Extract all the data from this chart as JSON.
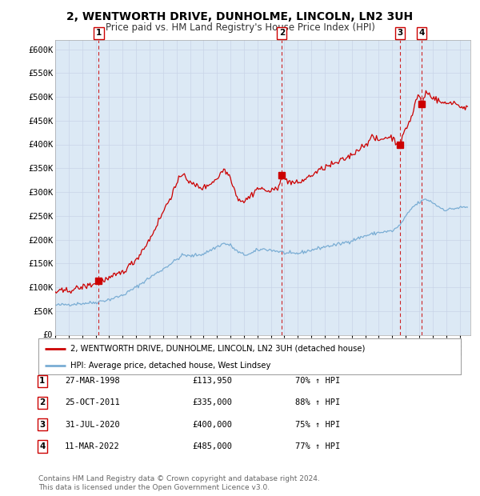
{
  "title": "2, WENTWORTH DRIVE, DUNHOLME, LINCOLN, LN2 3UH",
  "subtitle": "Price paid vs. HM Land Registry's House Price Index (HPI)",
  "title_fontsize": 10,
  "subtitle_fontsize": 8.5,
  "background_color": "#ffffff",
  "plot_bg_color": "#dce9f5",
  "ylim": [
    0,
    620000
  ],
  "yticks": [
    0,
    50000,
    100000,
    150000,
    200000,
    250000,
    300000,
    350000,
    400000,
    450000,
    500000,
    550000,
    600000
  ],
  "ytick_labels": [
    "£0",
    "£50K",
    "£100K",
    "£150K",
    "£200K",
    "£250K",
    "£300K",
    "£350K",
    "£400K",
    "£450K",
    "£500K",
    "£550K",
    "£600K"
  ],
  "xlim_start": 1995.0,
  "xlim_end": 2025.8,
  "xtick_years": [
    1995,
    1996,
    1997,
    1998,
    1999,
    2000,
    2001,
    2002,
    2003,
    2004,
    2005,
    2006,
    2007,
    2008,
    2009,
    2010,
    2011,
    2012,
    2013,
    2014,
    2015,
    2016,
    2017,
    2018,
    2019,
    2020,
    2021,
    2022,
    2023,
    2024,
    2025
  ],
  "sale_color": "#cc0000",
  "hpi_color": "#7aadd4",
  "grid_color": "#c8d4e8",
  "vline_color": "#cc0000",
  "legend_sale_label": "2, WENTWORTH DRIVE, DUNHOLME, LINCOLN, LN2 3UH (detached house)",
  "legend_hpi_label": "HPI: Average price, detached house, West Lindsey",
  "sales": [
    {
      "num": 1,
      "date_decimal": 1998.23,
      "price": 113950,
      "label": "1",
      "date_str": "27-MAR-1998",
      "price_str": "£113,950",
      "pct": "70%",
      "dir": "↑"
    },
    {
      "num": 2,
      "date_decimal": 2011.81,
      "price": 335000,
      "label": "2",
      "date_str": "25-OCT-2011",
      "price_str": "£335,000",
      "pct": "88%",
      "dir": "↑"
    },
    {
      "num": 3,
      "date_decimal": 2020.58,
      "price": 400000,
      "label": "3",
      "date_str": "31-JUL-2020",
      "price_str": "£400,000",
      "pct": "75%",
      "dir": "↑"
    },
    {
      "num": 4,
      "date_decimal": 2022.19,
      "price": 485000,
      "label": "4",
      "date_str": "11-MAR-2022",
      "price_str": "£485,000",
      "pct": "77%",
      "dir": "↑"
    }
  ],
  "footer_line1": "Contains HM Land Registry data © Crown copyright and database right 2024.",
  "footer_line2": "This data is licensed under the Open Government Licence v3.0.",
  "footnote_fontsize": 6.5
}
